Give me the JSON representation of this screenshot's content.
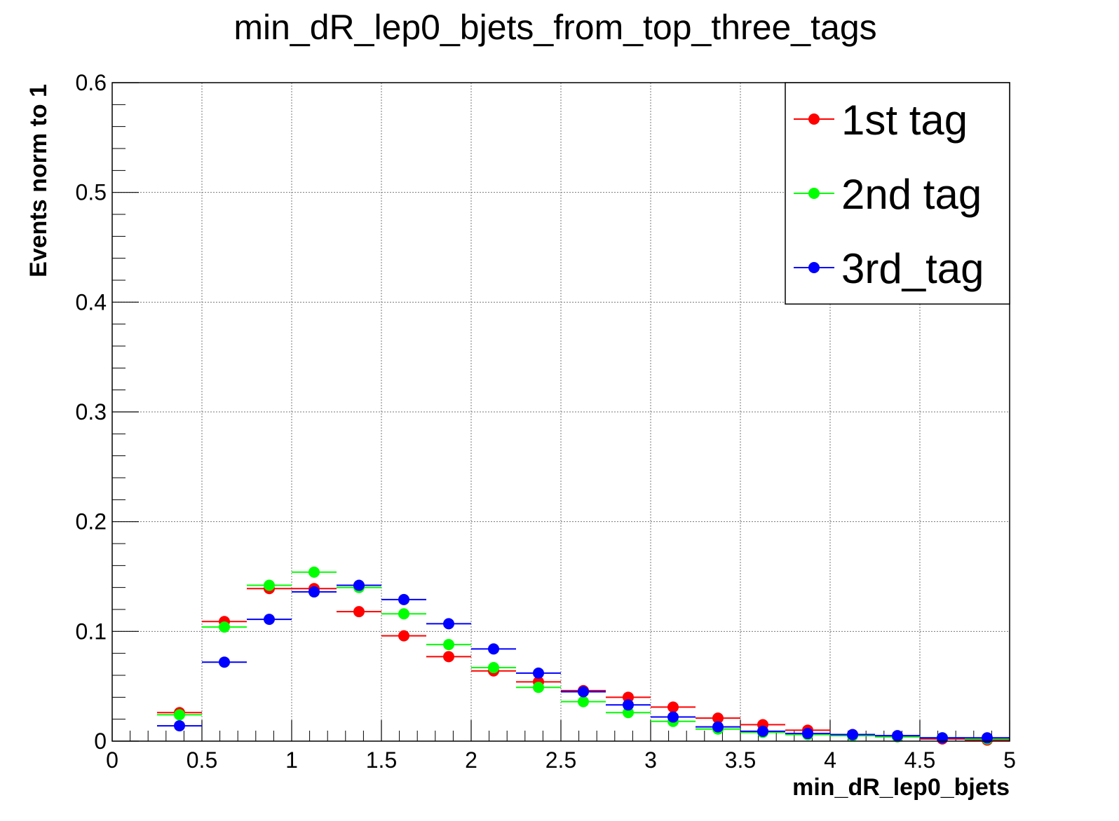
{
  "chart_data": {
    "type": "scatter",
    "title": "min_dR_lep0_bjets_from_top_three_tags",
    "xlabel": "min_dR_lep0_bjets",
    "ylabel": "Events norm to 1",
    "xlim": [
      0,
      5
    ],
    "ylim": [
      0,
      0.6
    ],
    "x_ticks": [
      "0",
      "0.5",
      "1",
      "1.5",
      "2",
      "2.5",
      "3",
      "3.5",
      "4",
      "4.5",
      "5"
    ],
    "y_ticks": [
      "0",
      "0.1",
      "0.2",
      "0.3",
      "0.4",
      "0.5",
      "0.6"
    ],
    "grid": true,
    "legend_position": "top-right",
    "bin_width": 0.25,
    "x": [
      0.375,
      0.625,
      0.875,
      1.125,
      1.375,
      1.625,
      1.875,
      2.125,
      2.375,
      2.625,
      2.875,
      3.125,
      3.375,
      3.625,
      3.875,
      4.125,
      4.375,
      4.625,
      4.875
    ],
    "series": [
      {
        "name": "1st tag",
        "color": "#ff0000",
        "values": [
          0.026,
          0.109,
          0.139,
          0.139,
          0.118,
          0.096,
          0.077,
          0.064,
          0.054,
          0.046,
          0.04,
          0.031,
          0.021,
          0.015,
          0.01,
          0.006,
          0.004,
          0.002,
          0.001
        ]
      },
      {
        "name": "2nd tag",
        "color": "#00ff00",
        "values": [
          0.024,
          0.104,
          0.142,
          0.154,
          0.14,
          0.116,
          0.088,
          0.067,
          0.049,
          0.036,
          0.026,
          0.018,
          0.011,
          0.008,
          0.006,
          0.005,
          0.004,
          0.003,
          0.002
        ]
      },
      {
        "name": "3rd_tag",
        "color": "#0000ff",
        "values": [
          0.014,
          0.072,
          0.111,
          0.136,
          0.142,
          0.129,
          0.107,
          0.084,
          0.062,
          0.045,
          0.033,
          0.022,
          0.013,
          0.009,
          0.007,
          0.006,
          0.005,
          0.003,
          0.003
        ]
      }
    ]
  }
}
